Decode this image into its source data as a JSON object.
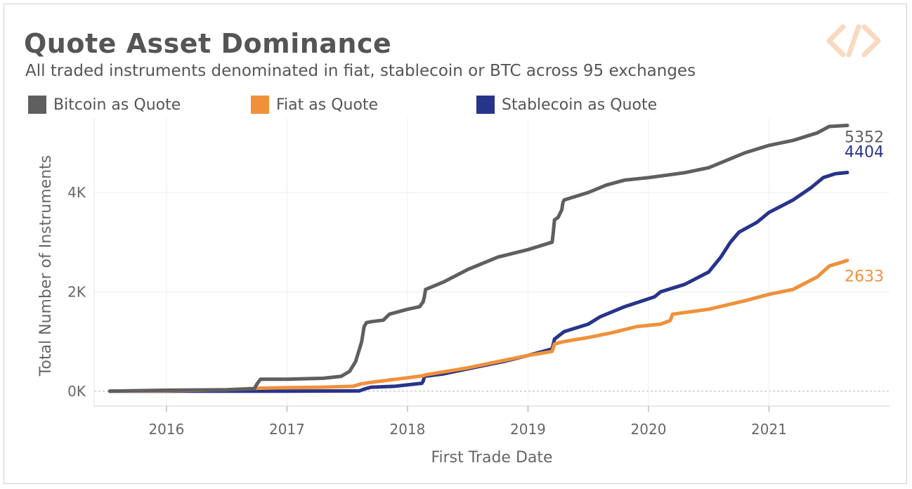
{
  "header": {
    "title": "Quote Asset Dominance",
    "subtitle": "All traded instruments denominated in fiat, stablecoin or BTC across 95 exchanges"
  },
  "legend": [
    {
      "label": "Bitcoin as Quote",
      "color": "#5f5f5f"
    },
    {
      "label": "Fiat as Quote",
      "color": "#f0913a"
    },
    {
      "label": "Stablecoin as Quote",
      "color": "#27348b"
    }
  ],
  "logo": {
    "icon": "brand-logo-icon",
    "color": "#f9d9bf"
  },
  "chart_data": {
    "type": "line",
    "xlabel": "First Trade Date",
    "ylabel": "Total Number of Instruments",
    "xlim": [
      2015.4,
      2022.0
    ],
    "ylim": [
      -300,
      5500
    ],
    "x_ticks": [
      2016,
      2017,
      2018,
      2019,
      2020,
      2021
    ],
    "x_tick_labels": [
      "2016",
      "2017",
      "2018",
      "2019",
      "2020",
      "2021"
    ],
    "y_ticks": [
      0,
      2000,
      4000
    ],
    "y_tick_labels": [
      "0K",
      "2K",
      "4K"
    ],
    "grid": true,
    "legend_position": "top",
    "end_labels": [
      "5352",
      "4404",
      "2633"
    ],
    "series": [
      {
        "name": "Bitcoin as Quote",
        "color": "#5f5f5f",
        "end_label": "5352",
        "x": [
          2015.53,
          2016.0,
          2016.5,
          2016.73,
          2016.75,
          2016.78,
          2017.0,
          2017.3,
          2017.45,
          2017.52,
          2017.57,
          2017.62,
          2017.64,
          2017.66,
          2017.7,
          2017.8,
          2017.85,
          2018.0,
          2018.1,
          2018.13,
          2018.14,
          2018.15,
          2018.3,
          2018.5,
          2018.75,
          2019.0,
          2019.2,
          2019.21,
          2019.22,
          2019.25,
          2019.28,
          2019.29,
          2019.3,
          2019.5,
          2019.65,
          2019.8,
          2020.0,
          2020.3,
          2020.5,
          2020.7,
          2020.8,
          2021.0,
          2021.2,
          2021.4,
          2021.5,
          2021.65
        ],
        "y": [
          0,
          20,
          30,
          50,
          140,
          240,
          240,
          260,
          300,
          400,
          600,
          1000,
          1300,
          1380,
          1400,
          1430,
          1550,
          1650,
          1700,
          1800,
          1900,
          2050,
          2200,
          2450,
          2700,
          2850,
          3000,
          3200,
          3450,
          3500,
          3650,
          3800,
          3850,
          4000,
          4150,
          4250,
          4300,
          4400,
          4500,
          4700,
          4800,
          4950,
          5050,
          5200,
          5330,
          5352
        ]
      },
      {
        "name": "Fiat as Quote",
        "color": "#f0913a",
        "end_label": "2633",
        "x": [
          2015.53,
          2016.0,
          2016.5,
          2016.75,
          2017.0,
          2017.3,
          2017.55,
          2017.62,
          2017.7,
          2018.0,
          2018.13,
          2018.15,
          2018.5,
          2018.8,
          2019.0,
          2019.2,
          2019.22,
          2019.3,
          2019.5,
          2019.7,
          2019.9,
          2020.1,
          2020.18,
          2020.2,
          2020.5,
          2020.8,
          2021.0,
          2021.2,
          2021.4,
          2021.5,
          2021.65
        ],
        "y": [
          0,
          10,
          30,
          60,
          70,
          80,
          100,
          150,
          180,
          270,
          310,
          330,
          470,
          620,
          720,
          800,
          950,
          1000,
          1080,
          1180,
          1300,
          1350,
          1420,
          1550,
          1650,
          1820,
          1950,
          2050,
          2300,
          2520,
          2633
        ]
      },
      {
        "name": "Stablecoin as Quote",
        "color": "#27348b",
        "end_label": "4404",
        "x": [
          2015.53,
          2016.5,
          2017.0,
          2017.6,
          2017.65,
          2017.7,
          2017.9,
          2018.12,
          2018.13,
          2018.14,
          2018.3,
          2018.6,
          2018.8,
          2019.0,
          2019.2,
          2019.21,
          2019.22,
          2019.3,
          2019.5,
          2019.6,
          2019.8,
          2019.9,
          2020.05,
          2020.1,
          2020.3,
          2020.5,
          2020.6,
          2020.68,
          2020.75,
          2020.9,
          2021.0,
          2021.2,
          2021.35,
          2021.45,
          2021.55,
          2021.65
        ],
        "y": [
          0,
          0,
          0,
          5,
          50,
          80,
          100,
          160,
          200,
          300,
          350,
          500,
          600,
          720,
          850,
          950,
          1050,
          1200,
          1350,
          1500,
          1700,
          1780,
          1900,
          2000,
          2150,
          2400,
          2700,
          3000,
          3200,
          3400,
          3600,
          3850,
          4100,
          4300,
          4380,
          4404
        ]
      }
    ]
  }
}
